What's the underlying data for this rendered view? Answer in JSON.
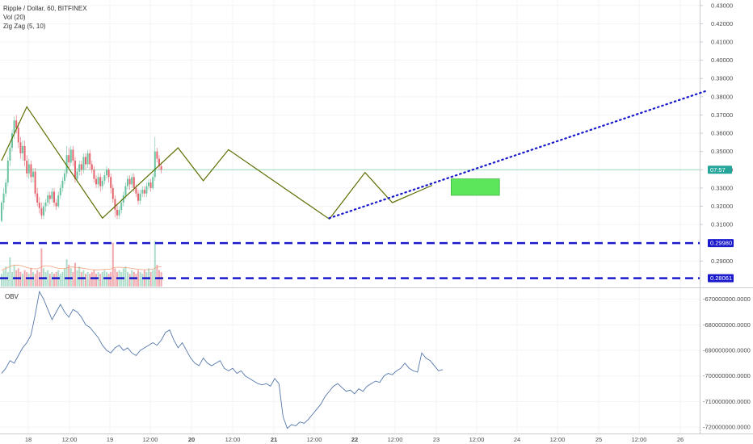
{
  "header": {
    "title": "Ripple / Dollar, 60, BITFINEX",
    "volume_indicator": "Vol (20)",
    "zigzag_indicator": "Zig Zag (5, 10)"
  },
  "obv_panel": {
    "title": "OBV"
  },
  "colors": {
    "up": "#6cc3a1",
    "down": "#e4656d",
    "zigzag": "#5a6e00",
    "support": "#1a1acc",
    "trend": "#1a1acc",
    "target": "#5ce65c",
    "obv": "#5577aa",
    "price_line": "#7fd1a6",
    "price_box": "#26a69a"
  },
  "chart_data": [
    {
      "type": "candlestick",
      "price_axis": {
        "ticks": [
          "0.43000",
          "0.42000",
          "0.41000",
          "0.40000",
          "0.39000",
          "0.38000",
          "0.37000",
          "0.36000",
          "0.35000",
          "0.34000",
          "0.33000",
          "0.32000",
          "0.31000",
          "0.29000"
        ],
        "range": [
          0.276,
          0.433
        ]
      },
      "time_axis": {
        "ticks": [
          "18",
          "12:00",
          "19",
          "12:00",
          "20",
          "12:00",
          "21",
          "12:00",
          "22",
          "12:00",
          "23",
          "12:00",
          "24",
          "12:00",
          "25",
          "12:00",
          "26"
        ],
        "bold_ticks": [
          "20",
          "21",
          "22"
        ]
      },
      "current_price_label": "07:57",
      "levels": [
        {
          "label": "0.29980",
          "value": 0.2998
        },
        {
          "label": "0.28061",
          "value": 0.28061
        }
      ],
      "zigzag": [
        {
          "x": 0,
          "y": 0.345
        },
        {
          "x": 12,
          "y": 0.3745
        },
        {
          "x": 48,
          "y": 0.3135
        },
        {
          "x": 84,
          "y": 0.352
        },
        {
          "x": 96,
          "y": 0.334
        },
        {
          "x": 108,
          "y": 0.351
        },
        {
          "x": 156,
          "y": 0.313
        },
        {
          "x": 173,
          "y": 0.3385
        },
        {
          "x": 186,
          "y": 0.322
        },
        {
          "x": 205,
          "y": 0.3315
        }
      ],
      "trendline": {
        "from": {
          "x": 156,
          "y": 0.3135
        },
        "to": {
          "x": 400,
          "y": 0.3835
        }
      },
      "target_zone": {
        "x0": 214,
        "x1": 237,
        "y0": 0.326,
        "y1": 0.335
      },
      "candles": [
        [
          0.312,
          0.322,
          0.311,
          0.323
        ],
        [
          0.322,
          0.327,
          0.318,
          0.33
        ],
        [
          0.327,
          0.333,
          0.325,
          0.335
        ],
        [
          0.333,
          0.345,
          0.331,
          0.347
        ],
        [
          0.345,
          0.352,
          0.342,
          0.355
        ],
        [
          0.352,
          0.36,
          0.35,
          0.362
        ],
        [
          0.36,
          0.367,
          0.357,
          0.369
        ],
        [
          0.367,
          0.363,
          0.36,
          0.37
        ],
        [
          0.363,
          0.355,
          0.352,
          0.366
        ],
        [
          0.355,
          0.349,
          0.346,
          0.358
        ],
        [
          0.349,
          0.353,
          0.345,
          0.356
        ],
        [
          0.353,
          0.345,
          0.342,
          0.356
        ],
        [
          0.345,
          0.338,
          0.336,
          0.348
        ],
        [
          0.338,
          0.343,
          0.335,
          0.346
        ],
        [
          0.343,
          0.336,
          0.333,
          0.345
        ],
        [
          0.336,
          0.339,
          0.333,
          0.341
        ],
        [
          0.339,
          0.327,
          0.325,
          0.341
        ],
        [
          0.327,
          0.322,
          0.32,
          0.33
        ],
        [
          0.322,
          0.319,
          0.316,
          0.325
        ],
        [
          0.319,
          0.315,
          0.313,
          0.322
        ],
        [
          0.315,
          0.32,
          0.313,
          0.322
        ],
        [
          0.32,
          0.322,
          0.317,
          0.324
        ],
        [
          0.322,
          0.326,
          0.32,
          0.328
        ],
        [
          0.326,
          0.324,
          0.321,
          0.328
        ],
        [
          0.324,
          0.328,
          0.322,
          0.33
        ],
        [
          0.328,
          0.322,
          0.32,
          0.33
        ],
        [
          0.322,
          0.32,
          0.318,
          0.324
        ],
        [
          0.32,
          0.326,
          0.319,
          0.328
        ],
        [
          0.326,
          0.33,
          0.324,
          0.332
        ],
        [
          0.33,
          0.334,
          0.328,
          0.336
        ],
        [
          0.334,
          0.338,
          0.332,
          0.34
        ],
        [
          0.338,
          0.348,
          0.336,
          0.353
        ],
        [
          0.348,
          0.344,
          0.34,
          0.352
        ],
        [
          0.344,
          0.351,
          0.342,
          0.353
        ],
        [
          0.351,
          0.345,
          0.342,
          0.353
        ],
        [
          0.345,
          0.335,
          0.333,
          0.347
        ],
        [
          0.335,
          0.339,
          0.333,
          0.341
        ],
        [
          0.339,
          0.343,
          0.337,
          0.345
        ],
        [
          0.343,
          0.34,
          0.337,
          0.345
        ],
        [
          0.34,
          0.347,
          0.338,
          0.349
        ],
        [
          0.347,
          0.343,
          0.34,
          0.349
        ],
        [
          0.343,
          0.349,
          0.341,
          0.351
        ],
        [
          0.349,
          0.343,
          0.34,
          0.351
        ],
        [
          0.343,
          0.34,
          0.338,
          0.345
        ],
        [
          0.34,
          0.335,
          0.333,
          0.342
        ],
        [
          0.335,
          0.332,
          0.33,
          0.337
        ],
        [
          0.332,
          0.336,
          0.33,
          0.338
        ],
        [
          0.336,
          0.331,
          0.328,
          0.338
        ],
        [
          0.331,
          0.334,
          0.329,
          0.336
        ],
        [
          0.334,
          0.337,
          0.332,
          0.339
        ],
        [
          0.337,
          0.34,
          0.335,
          0.342
        ],
        [
          0.34,
          0.336,
          0.333,
          0.341
        ],
        [
          0.336,
          0.33,
          0.327,
          0.338
        ],
        [
          0.33,
          0.324,
          0.322,
          0.332
        ],
        [
          0.324,
          0.318,
          0.314,
          0.326
        ],
        [
          0.318,
          0.315,
          0.313,
          0.321
        ],
        [
          0.315,
          0.318,
          0.313,
          0.32
        ],
        [
          0.318,
          0.322,
          0.316,
          0.324
        ],
        [
          0.322,
          0.326,
          0.32,
          0.328
        ],
        [
          0.326,
          0.331,
          0.324,
          0.333
        ],
        [
          0.331,
          0.335,
          0.329,
          0.337
        ],
        [
          0.335,
          0.332,
          0.329,
          0.337
        ],
        [
          0.332,
          0.336,
          0.33,
          0.338
        ],
        [
          0.336,
          0.33,
          0.328,
          0.338
        ],
        [
          0.33,
          0.327,
          0.325,
          0.332
        ],
        [
          0.327,
          0.323,
          0.321,
          0.329
        ],
        [
          0.323,
          0.327,
          0.321,
          0.329
        ],
        [
          0.327,
          0.329,
          0.325,
          0.331
        ],
        [
          0.329,
          0.327,
          0.325,
          0.331
        ],
        [
          0.327,
          0.331,
          0.325,
          0.333
        ],
        [
          0.331,
          0.333,
          0.329,
          0.335
        ],
        [
          0.333,
          0.33,
          0.328,
          0.335
        ],
        [
          0.33,
          0.336,
          0.329,
          0.338
        ],
        [
          0.336,
          0.35,
          0.334,
          0.358
        ],
        [
          0.35,
          0.346,
          0.344,
          0.352
        ],
        [
          0.346,
          0.342,
          0.34,
          0.348
        ],
        [
          0.342,
          0.34,
          0.338,
          0.344
        ]
      ],
      "volumes": [
        0.283,
        0.285,
        0.287,
        0.284,
        0.292,
        0.284,
        0.288,
        0.285,
        0.286,
        0.284,
        0.283,
        0.285,
        0.284,
        0.283,
        0.286,
        0.284,
        0.283,
        0.285,
        0.284,
        0.297,
        0.286,
        0.284,
        0.285,
        0.283,
        0.284,
        0.283,
        0.284,
        0.285,
        0.283,
        0.284,
        0.286,
        0.291,
        0.288,
        0.286,
        0.284,
        0.289,
        0.285,
        0.287,
        0.284,
        0.285,
        0.283,
        0.284,
        0.283,
        0.284,
        0.285,
        0.283,
        0.284,
        0.283,
        0.284,
        0.285,
        0.284,
        0.283,
        0.284,
        0.3,
        0.286,
        0.284,
        0.285,
        0.284,
        0.286,
        0.287,
        0.284,
        0.283,
        0.285,
        0.284,
        0.283,
        0.285,
        0.284,
        0.283,
        0.285,
        0.284,
        0.286,
        0.284,
        0.285,
        0.301,
        0.288,
        0.285,
        0.284
      ],
      "volume_ma": [
        0.285,
        0.2855,
        0.286,
        0.2865,
        0.287,
        0.2875,
        0.2877,
        0.2878,
        0.2877,
        0.2875,
        0.2872,
        0.2868,
        0.2865,
        0.2862,
        0.286,
        0.2858,
        0.2857,
        0.2858,
        0.2862,
        0.2868,
        0.2872,
        0.2874,
        0.2874,
        0.2872,
        0.2869,
        0.2866,
        0.2863,
        0.286,
        0.2859,
        0.2858,
        0.2859,
        0.2862,
        0.2865,
        0.2867,
        0.2867,
        0.2866,
        0.2865,
        0.2864,
        0.2862,
        0.286,
        0.2858,
        0.2856,
        0.2854,
        0.2853,
        0.2852,
        0.2852,
        0.2852,
        0.2852,
        0.2853,
        0.2854,
        0.2855,
        0.2855,
        0.2856,
        0.2862,
        0.2865,
        0.2866,
        0.2866,
        0.2865,
        0.2864,
        0.2864,
        0.2863,
        0.2861,
        0.286,
        0.2858,
        0.2856,
        0.2855,
        0.2854,
        0.2853,
        0.2853,
        0.2853,
        0.2854,
        0.2854,
        0.2855,
        0.2862,
        0.2866,
        0.2868,
        0.2868
      ]
    },
    {
      "type": "line",
      "name": "OBV",
      "y_axis": {
        "ticks": [
          "-670000000.0000",
          "-680000000.0000",
          "-690000000.0000",
          "-700000000.0000",
          "-710000000.0000",
          "-720000000.0000"
        ],
        "range": [
          -722500000,
          -666000000
        ]
      },
      "values": [
        -699000000,
        -697000000,
        -694000000,
        -695000000,
        -692000000,
        -689000000,
        -687000000,
        -684000000,
        -676000000,
        -667000000,
        -670000000,
        -674000000,
        -678000000,
        -675000000,
        -672000000,
        -675000000,
        -677000000,
        -674000000,
        -675000000,
        -677000000,
        -680000000,
        -681000000,
        -683000000,
        -685000000,
        -688000000,
        -690000000,
        -691000000,
        -689000000,
        -688000000,
        -690000000,
        -689000000,
        -691000000,
        -692000000,
        -690000000,
        -689000000,
        -688000000,
        -687000000,
        -688000000,
        -686000000,
        -683000000,
        -682000000,
        -686000000,
        -689000000,
        -687000000,
        -690000000,
        -693000000,
        -695000000,
        -696000000,
        -693000000,
        -695000000,
        -696000000,
        -695000000,
        -694000000,
        -697000000,
        -698000000,
        -697000000,
        -699000000,
        -698000000,
        -700000000,
        -701000000,
        -702000000,
        -703000000,
        -703500000,
        -703000000,
        -704000000,
        -701000000,
        -703000000,
        -716000000,
        -720500000,
        -719000000,
        -719500000,
        -718000000,
        -718500000,
        -717000000,
        -715000000,
        -713000000,
        -711000000,
        -708000000,
        -706000000,
        -704000000,
        -703000000,
        -704500000,
        -706000000,
        -705500000,
        -707000000,
        -705000000,
        -706000000,
        -704000000,
        -703000000,
        -702000000,
        -702500000,
        -700000000,
        -699000000,
        -699500000,
        -698000000,
        -697000000,
        -695000000,
        -697000000,
        -698000000,
        -698500000,
        -691000000,
        -693000000,
        -694000000,
        -696000000,
        -698000000,
        -697500000
      ]
    }
  ]
}
